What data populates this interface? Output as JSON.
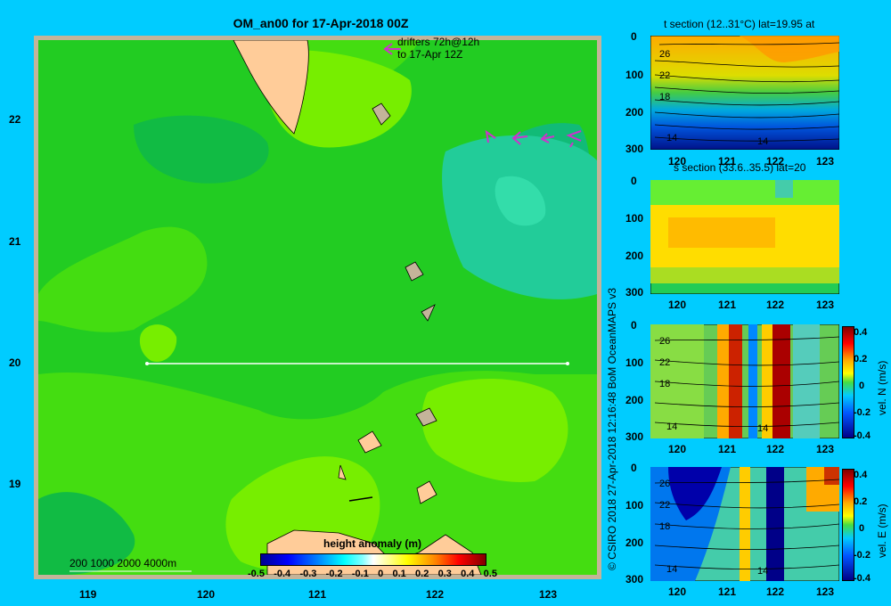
{
  "main_map": {
    "title": "OM_an00 for 17-Apr-2018 00Z",
    "drifters_label_1": "drifters 72h@12h",
    "drifters_label_2": "to 17-Apr 12Z",
    "depth_legend": "200  1000  2000  4000m",
    "lon_ticks": [
      "119",
      "120",
      "121",
      "122",
      "123"
    ],
    "lat_ticks": [
      "22",
      "21",
      "20",
      "19"
    ],
    "section_line": {
      "lat": 20,
      "lon_start": 119.5,
      "lon_end": 123.2
    }
  },
  "colorbar": {
    "label": "height anomaly  (m)",
    "ticks": [
      "-0.5",
      "-0.4",
      "-0.3",
      "-0.2",
      "-0.1",
      "0",
      "0.1",
      "0.2",
      "0.3",
      "0.4",
      "0.5"
    ]
  },
  "credit": "© CSIRO 2018    27-Apr-2018 12:16:48 BoM OceanMAPS v3",
  "panels": [
    {
      "title": "t section (12..31°C) lat=19.95 at",
      "colorbar": null,
      "contour_labels": [
        "26",
        "22",
        "18",
        "14",
        "14"
      ]
    },
    {
      "title": "s section (33.6..35.5) lat=20",
      "colorbar": null,
      "contour_labels": []
    },
    {
      "title": "",
      "colorbar": {
        "label": "vel. N  (m/s)",
        "ticks": [
          "0.4",
          "0.2",
          "0",
          "-0.2",
          "-0.4"
        ]
      },
      "contour_labels": [
        "26",
        "22",
        "18",
        "14",
        "14"
      ]
    },
    {
      "title": "",
      "colorbar": {
        "label": "vel. E  (m/s)",
        "ticks": [
          "0.4",
          "0.2",
          "0",
          "-0.2",
          "-0.4"
        ]
      },
      "contour_labels": [
        "26",
        "22",
        "18",
        "14",
        "14"
      ]
    }
  ],
  "panel_axes": {
    "x_ticks": [
      "120",
      "121",
      "122",
      "123"
    ],
    "y_ticks": [
      "0",
      "100",
      "200",
      "300"
    ]
  },
  "chart_data": {
    "type": "heatmap",
    "title": "OM_an00 for 17-Apr-2018 00Z",
    "x_axis": "longitude",
    "xlim": [
      118.5,
      123.5
    ],
    "y_axis": "latitude",
    "ylim": [
      18.2,
      22.7
    ],
    "colorbar_range": [
      -0.5,
      0.5
    ],
    "section_lat": 20,
    "subplots": [
      {
        "name": "t section",
        "xlim": [
          119.6,
          123.2
        ],
        "ylim": [
          300,
          0
        ]
      },
      {
        "name": "s section",
        "xlim": [
          119.6,
          123.2
        ],
        "ylim": [
          300,
          0
        ]
      },
      {
        "name": "vel. N",
        "xlim": [
          119.6,
          123.2
        ],
        "ylim": [
          300,
          0
        ],
        "crange": [
          -0.4,
          0.4
        ]
      },
      {
        "name": "vel. E",
        "xlim": [
          119.6,
          123.2
        ],
        "ylim": [
          300,
          0
        ],
        "crange": [
          -0.4,
          0.4
        ]
      }
    ]
  }
}
